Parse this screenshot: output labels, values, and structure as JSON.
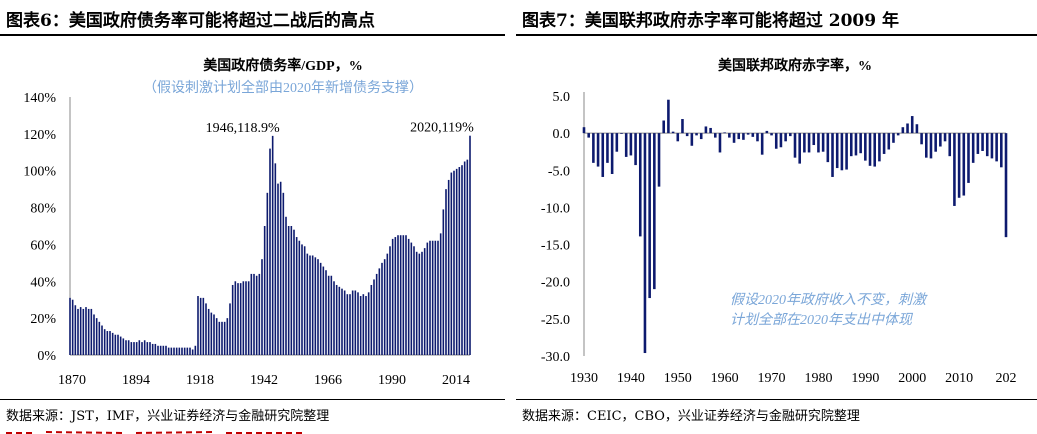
{
  "figures": [
    {
      "fig_title": "图表6：美国政府债务率可能将超过二战后的高点",
      "source": "数据来源：JST，IMF，兴业证券经济与金融研究院整理"
    },
    {
      "fig_title": "图表7：美国联邦政府赤字率可能将超过 2009 年",
      "source": "数据来源：CEIC，CBO，兴业证券经济与金融研究院整理"
    }
  ],
  "chart_data": [
    {
      "type": "bar",
      "title": "美国政府债务率/GDP，%",
      "subtitle": "（假设刺激计划全部由2020年新增债务支撑）",
      "xlabel": "",
      "ylabel": "",
      "x_ticks": [
        "1870",
        "1894",
        "1918",
        "1942",
        "1966",
        "1990",
        "2014"
      ],
      "y_ticks": [
        "0%",
        "20%",
        "40%",
        "60%",
        "80%",
        "100%",
        "120%",
        "140%"
      ],
      "ylim": [
        0,
        140
      ],
      "xlim": [
        1870,
        2020
      ],
      "grid": false,
      "legend": "none",
      "bar_color": "#0d1a6e",
      "annotations": [
        {
          "text": "1946,118.9%",
          "x": 1946,
          "y": 118.9
        },
        {
          "text": "2020,119%",
          "x": 2020,
          "y": 119
        }
      ],
      "x": [
        1870,
        1871,
        1872,
        1873,
        1874,
        1875,
        1876,
        1877,
        1878,
        1879,
        1880,
        1881,
        1882,
        1883,
        1884,
        1885,
        1886,
        1887,
        1888,
        1889,
        1890,
        1891,
        1892,
        1893,
        1894,
        1895,
        1896,
        1897,
        1898,
        1899,
        1900,
        1901,
        1902,
        1903,
        1904,
        1905,
        1906,
        1907,
        1908,
        1909,
        1910,
        1911,
        1912,
        1913,
        1914,
        1915,
        1916,
        1917,
        1918,
        1919,
        1920,
        1921,
        1922,
        1923,
        1924,
        1925,
        1926,
        1927,
        1928,
        1929,
        1930,
        1931,
        1932,
        1933,
        1934,
        1935,
        1936,
        1937,
        1938,
        1939,
        1940,
        1941,
        1942,
        1943,
        1944,
        1945,
        1946,
        1947,
        1948,
        1949,
        1950,
        1951,
        1952,
        1953,
        1954,
        1955,
        1956,
        1957,
        1958,
        1959,
        1960,
        1961,
        1962,
        1963,
        1964,
        1965,
        1966,
        1967,
        1968,
        1969,
        1970,
        1971,
        1972,
        1973,
        1974,
        1975,
        1976,
        1977,
        1978,
        1979,
        1980,
        1981,
        1982,
        1983,
        1984,
        1985,
        1986,
        1987,
        1988,
        1989,
        1990,
        1991,
        1992,
        1993,
        1994,
        1995,
        1996,
        1997,
        1998,
        1999,
        2000,
        2001,
        2002,
        2003,
        2004,
        2005,
        2006,
        2007,
        2008,
        2009,
        2010,
        2011,
        2012,
        2013,
        2014,
        2015,
        2016,
        2017,
        2018,
        2019,
        2020
      ],
      "values": [
        31,
        30,
        27,
        25,
        26,
        25,
        26,
        25,
        25,
        22,
        20,
        18,
        16,
        14,
        13,
        13,
        12,
        11,
        11,
        10,
        9,
        8,
        8,
        7,
        7,
        7,
        8,
        7,
        8,
        7,
        7,
        6,
        6,
        5,
        5,
        5,
        5,
        4,
        4,
        4,
        4,
        4,
        4,
        4,
        4,
        4,
        3,
        5,
        32,
        31,
        31,
        28,
        25,
        23,
        22,
        20,
        18,
        18,
        18,
        20,
        28,
        38,
        40,
        39,
        39,
        40,
        40,
        40,
        44,
        44,
        43,
        44,
        52,
        70,
        88,
        112,
        118.9,
        104,
        93,
        94,
        88,
        75,
        70,
        70,
        68,
        64,
        62,
        60,
        59,
        55,
        54,
        54,
        53,
        52,
        50,
        48,
        46,
        43,
        43,
        40,
        38,
        37,
        36,
        35,
        33,
        33,
        35,
        35,
        34,
        32,
        33,
        32,
        34,
        38,
        41,
        44,
        47,
        50,
        52,
        55,
        59,
        63,
        64,
        65,
        65,
        65,
        65,
        63,
        61,
        59,
        56,
        55,
        56,
        58,
        61,
        62,
        62,
        62,
        62,
        66,
        79,
        90,
        95,
        99,
        100,
        101,
        102,
        103,
        105,
        106,
        119
      ]
    },
    {
      "type": "bar",
      "title": "美国联邦政府赤字率，%",
      "xlabel": "",
      "ylabel": "",
      "x_ticks": [
        "1930",
        "1940",
        "1950",
        "1960",
        "1970",
        "1980",
        "1990",
        "2000",
        "2010",
        "202"
      ],
      "y_ticks": [
        "5.0",
        "0.0",
        "-5.0",
        "-10.0",
        "-15.0",
        "-20.0",
        "-25.0",
        "-30.0"
      ],
      "ylim": [
        -30,
        5
      ],
      "xlim": [
        1930,
        2020
      ],
      "grid": false,
      "legend": "none",
      "bar_color": "#0d1a6e",
      "annotation": "假设2020年政府收入不变，刺激计划全部在2020年支出中体现",
      "x": [
        1930,
        1931,
        1932,
        1933,
        1934,
        1935,
        1936,
        1937,
        1938,
        1939,
        1940,
        1941,
        1942,
        1943,
        1944,
        1945,
        1946,
        1947,
        1948,
        1949,
        1950,
        1951,
        1952,
        1953,
        1954,
        1955,
        1956,
        1957,
        1958,
        1959,
        1960,
        1961,
        1962,
        1963,
        1964,
        1965,
        1966,
        1967,
        1968,
        1969,
        1970,
        1971,
        1972,
        1973,
        1974,
        1975,
        1976,
        1977,
        1978,
        1979,
        1980,
        1981,
        1982,
        1983,
        1984,
        1985,
        1986,
        1987,
        1988,
        1989,
        1990,
        1991,
        1992,
        1993,
        1994,
        1995,
        1996,
        1997,
        1998,
        1999,
        2000,
        2001,
        2002,
        2003,
        2004,
        2005,
        2006,
        2007,
        2008,
        2009,
        2010,
        2011,
        2012,
        2013,
        2014,
        2015,
        2016,
        2017,
        2018,
        2019,
        2020
      ],
      "values": [
        0.8,
        -0.6,
        -4.0,
        -4.5,
        -5.9,
        -4.0,
        -5.5,
        -2.5,
        -0.1,
        -3.2,
        -3.0,
        -4.3,
        -13.9,
        -29.6,
        -22.2,
        -21.0,
        -7.2,
        1.7,
        4.5,
        0.2,
        -1.1,
        1.9,
        -0.4,
        -1.7,
        -0.3,
        -0.8,
        0.9,
        0.7,
        -0.6,
        -2.6,
        0.1,
        -0.6,
        -1.3,
        -0.8,
        -0.9,
        -0.2,
        -0.5,
        -1.1,
        -2.9,
        0.3,
        -0.3,
        -2.1,
        -1.9,
        -1.1,
        -0.4,
        -3.3,
        -4.1,
        -2.6,
        -2.6,
        -1.6,
        -2.6,
        -2.5,
        -3.9,
        -5.9,
        -4.7,
        -5.0,
        -4.9,
        -3.1,
        -3.0,
        -2.7,
        -3.7,
        -4.4,
        -4.5,
        -3.8,
        -2.8,
        -2.2,
        -1.3,
        -0.3,
        0.8,
        1.3,
        2.3,
        1.2,
        -1.5,
        -3.3,
        -3.4,
        -2.5,
        -1.8,
        -1.1,
        -3.1,
        -9.8,
        -8.7,
        -8.4,
        -6.7,
        -4.0,
        -2.8,
        -2.4,
        -3.1,
        -3.4,
        -3.8,
        -4.6,
        -14.0
      ]
    }
  ]
}
